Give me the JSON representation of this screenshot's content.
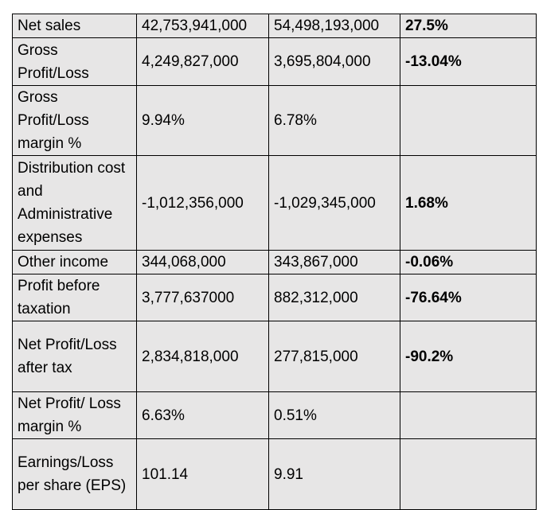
{
  "table": {
    "rows": [
      [
        "Net sales",
        "42,753,941,000",
        "54,498,193,000",
        "27.5%"
      ],
      [
        "Gross Profit/Loss",
        "4,249,827,000",
        "3,695,804,000",
        "-13.04%"
      ],
      [
        "Gross Profit/Loss margin %",
        "9.94%",
        "6.78%",
        null
      ],
      [
        "Distribution cost and Administrative expenses",
        "-1,012,356,000",
        "-1,029,345,000",
        "1.68%"
      ],
      [
        "Other income",
        "344,068,000",
        "343,867,000",
        "-0.06%"
      ],
      [
        "Profit before taxation",
        "3,777,637000",
        "882,312,000",
        "-76.64%"
      ],
      [
        "Net Profit/Loss after tax",
        "2,834,818,000",
        "277,815,000",
        "-90.2%"
      ],
      [
        "Net Profit/ Loss margin %",
        "6.63%",
        "0.51%",
        null
      ],
      [
        "Earnings/Loss per share (EPS)",
        "101.14",
        "9.91",
        null
      ]
    ]
  }
}
